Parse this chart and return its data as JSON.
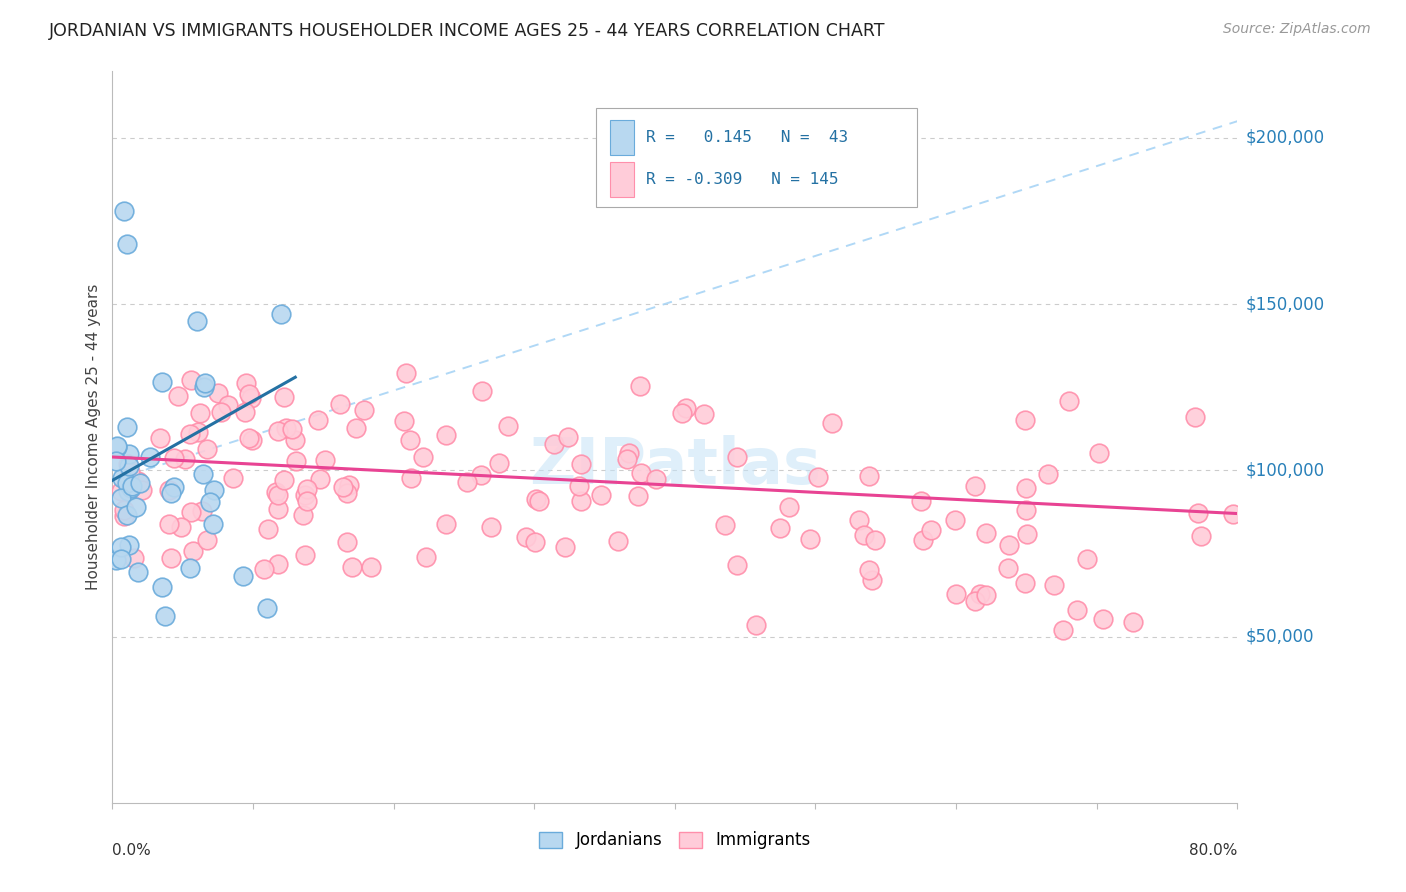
{
  "title": "JORDANIAN VS IMMIGRANTS HOUSEHOLDER INCOME AGES 25 - 44 YEARS CORRELATION CHART",
  "source": "Source: ZipAtlas.com",
  "ylabel": "Householder Income Ages 25 - 44 years",
  "ytick_labels": [
    "$50,000",
    "$100,000",
    "$150,000",
    "$200,000"
  ],
  "ytick_values": [
    50000,
    100000,
    150000,
    200000
  ],
  "legend_label1": "Jordanians",
  "legend_label2": "Immigrants",
  "r1": 0.145,
  "n1": 43,
  "r2": -0.309,
  "n2": 145,
  "color_jord_face": "#B8D8F0",
  "color_jord_edge": "#6AABDB",
  "color_imm_face": "#FFCCD9",
  "color_imm_edge": "#FF8FAB",
  "color_trend_blue": "#2471A3",
  "color_trend_pink": "#E84393",
  "color_dashed": "#A8D4F5",
  "color_grid": "#CCCCCC",
  "color_ytick": "#2980B9",
  "watermark": "ZIPatlas",
  "xmin": 0.0,
  "xmax": 0.8,
  "ymin": 0,
  "ymax": 220000,
  "jord_trend_x": [
    0.0,
    0.13
  ],
  "jord_trend_y": [
    97000,
    128000
  ],
  "imm_trend_x": [
    0.0,
    0.8
  ],
  "imm_trend_y": [
    104000,
    87000
  ],
  "ext_trend_x": [
    0.0,
    0.8
  ],
  "ext_trend_y": [
    97000,
    205000
  ]
}
